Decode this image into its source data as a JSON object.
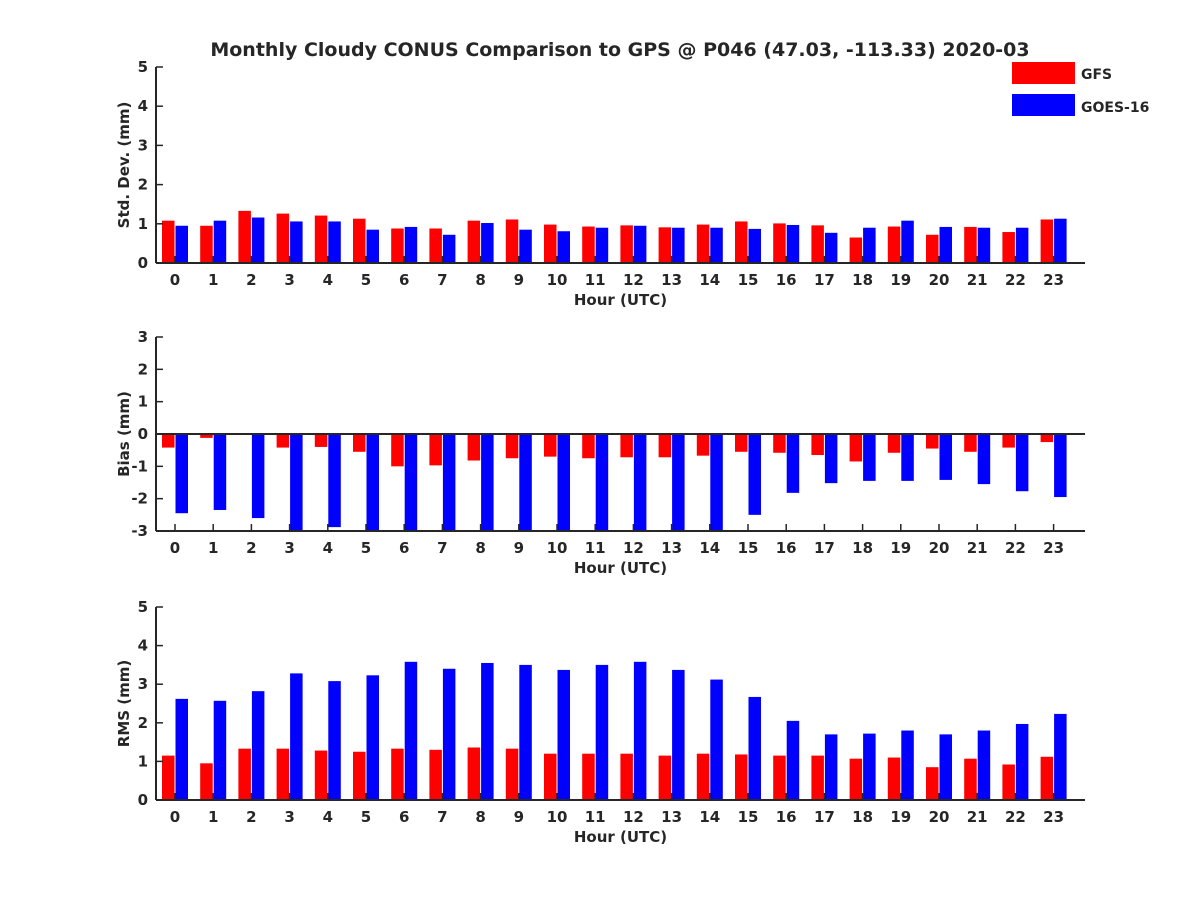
{
  "title": "Monthly Cloudy CONUS Comparison to GPS @ P046 (47.03, -113.33) 2020-03",
  "legend": {
    "placement": "top-right",
    "items": [
      {
        "label": "GFS",
        "color": "#ff0000"
      },
      {
        "label": "GOES-16",
        "color": "#0000ff"
      }
    ]
  },
  "chart_data": [
    {
      "type": "bar",
      "xlabel": "Hour (UTC)",
      "ylabel": "Std. Dev. (mm)",
      "ylim": [
        0,
        5
      ],
      "yticks": [
        0,
        1,
        2,
        3,
        4,
        5
      ],
      "categories": [
        "0",
        "1",
        "2",
        "3",
        "4",
        "5",
        "6",
        "7",
        "8",
        "9",
        "10",
        "11",
        "12",
        "13",
        "14",
        "15",
        "16",
        "17",
        "18",
        "19",
        "20",
        "21",
        "22",
        "23"
      ],
      "series": [
        {
          "name": "GFS",
          "color": "#ff0000",
          "values": [
            1.08,
            0.95,
            1.33,
            1.26,
            1.21,
            1.13,
            0.88,
            0.88,
            1.08,
            1.11,
            0.98,
            0.93,
            0.96,
            0.91,
            0.98,
            1.06,
            1.01,
            0.96,
            0.65,
            0.93,
            0.72,
            0.92,
            0.79,
            1.11
          ]
        },
        {
          "name": "GOES-16",
          "color": "#0000ff",
          "values": [
            0.95,
            1.08,
            1.16,
            1.06,
            1.06,
            0.85,
            0.92,
            0.72,
            1.02,
            0.85,
            0.81,
            0.9,
            0.95,
            0.9,
            0.9,
            0.87,
            0.97,
            0.77,
            0.9,
            1.08,
            0.92,
            0.9,
            0.9,
            1.13
          ]
        }
      ]
    },
    {
      "type": "bar",
      "xlabel": "Hour (UTC)",
      "ylabel": "Bias (mm)",
      "ylim": [
        -3,
        3
      ],
      "yticks": [
        -3,
        -2,
        -1,
        0,
        1,
        2,
        3
      ],
      "categories": [
        "0",
        "1",
        "2",
        "3",
        "4",
        "5",
        "6",
        "7",
        "8",
        "9",
        "10",
        "11",
        "12",
        "13",
        "14",
        "15",
        "16",
        "17",
        "18",
        "19",
        "20",
        "21",
        "22",
        "23"
      ],
      "series": [
        {
          "name": "GFS",
          "color": "#ff0000",
          "values": [
            -0.42,
            -0.12,
            -0.02,
            -0.42,
            -0.4,
            -0.55,
            -1.0,
            -0.97,
            -0.82,
            -0.75,
            -0.7,
            -0.75,
            -0.72,
            -0.72,
            -0.67,
            -0.55,
            -0.58,
            -0.65,
            -0.85,
            -0.58,
            -0.45,
            -0.55,
            -0.42,
            -0.25
          ]
        },
        {
          "name": "GOES-16",
          "color": "#0000ff",
          "values": [
            -2.45,
            -2.35,
            -2.6,
            -3.0,
            -2.88,
            -3.0,
            -3.0,
            -3.0,
            -3.0,
            -3.0,
            -3.0,
            -3.0,
            -3.0,
            -3.0,
            -3.0,
            -2.5,
            -1.82,
            -1.52,
            -1.45,
            -1.45,
            -1.42,
            -1.55,
            -1.77,
            -1.95
          ]
        }
      ]
    },
    {
      "type": "bar",
      "xlabel": "Hour (UTC)",
      "ylabel": "RMS (mm)",
      "ylim": [
        0,
        5
      ],
      "yticks": [
        0,
        1,
        2,
        3,
        4,
        5
      ],
      "categories": [
        "0",
        "1",
        "2",
        "3",
        "4",
        "5",
        "6",
        "7",
        "8",
        "9",
        "10",
        "11",
        "12",
        "13",
        "14",
        "15",
        "16",
        "17",
        "18",
        "19",
        "20",
        "21",
        "22",
        "23"
      ],
      "series": [
        {
          "name": "GFS",
          "color": "#ff0000",
          "values": [
            1.15,
            0.95,
            1.33,
            1.33,
            1.28,
            1.25,
            1.33,
            1.3,
            1.36,
            1.33,
            1.2,
            1.2,
            1.2,
            1.15,
            1.2,
            1.18,
            1.15,
            1.15,
            1.07,
            1.1,
            0.85,
            1.07,
            0.92,
            1.12
          ]
        },
        {
          "name": "GOES-16",
          "color": "#0000ff",
          "values": [
            2.62,
            2.57,
            2.82,
            3.28,
            3.08,
            3.23,
            3.58,
            3.4,
            3.55,
            3.5,
            3.37,
            3.5,
            3.58,
            3.37,
            3.12,
            2.67,
            2.05,
            1.7,
            1.72,
            1.8,
            1.7,
            1.8,
            1.97,
            2.23
          ]
        }
      ]
    }
  ]
}
